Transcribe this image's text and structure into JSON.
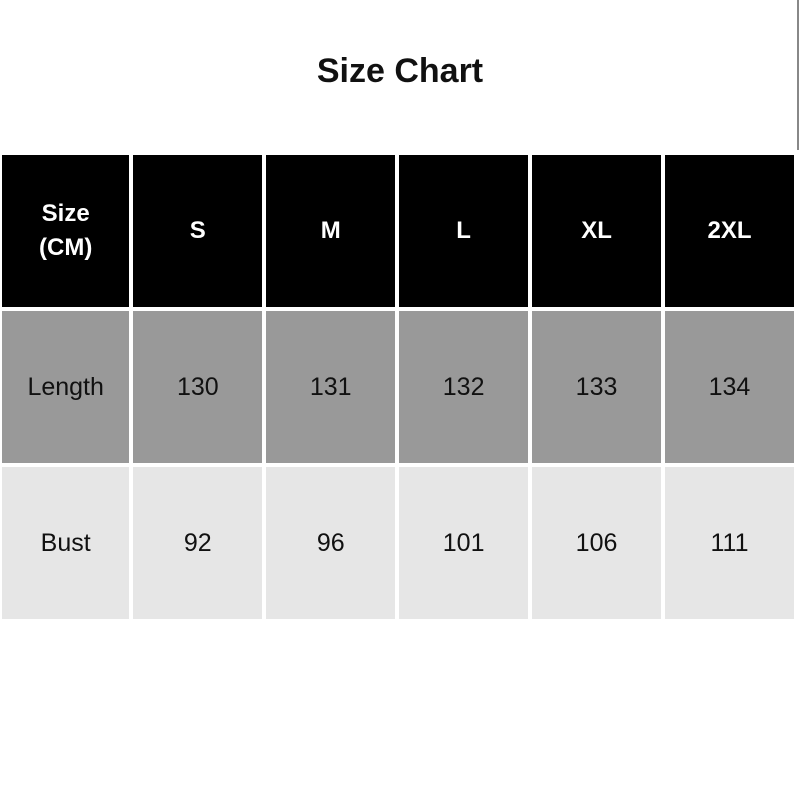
{
  "title": "Size Chart",
  "table": {
    "header": [
      "Size\n(CM)",
      "S",
      "M",
      "L",
      "XL",
      "2XL"
    ],
    "rows": [
      [
        "Length",
        "130",
        "131",
        "132",
        "133",
        "134"
      ],
      [
        "Bust",
        "92",
        "96",
        "101",
        "106",
        "111"
      ]
    ]
  },
  "colors": {
    "header_bg": "#000000",
    "row1_bg": "#999999",
    "row2_bg": "#e6e6e6"
  }
}
